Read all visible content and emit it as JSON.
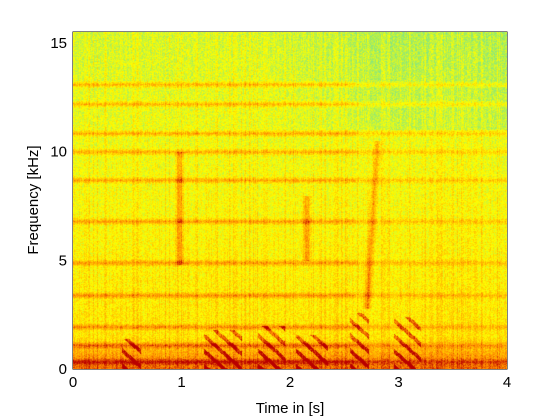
{
  "chart_data": {
    "type": "heatmap",
    "subtype": "spectrogram",
    "title": "",
    "xlabel": "Time in [s]",
    "ylabel": "Frequency [kHz]",
    "xlim": [
      0,
      4
    ],
    "ylim": [
      0,
      15.5
    ],
    "xticks": [
      0,
      1,
      2,
      3,
      4
    ],
    "xtick_labels": [
      "0",
      "1",
      "2",
      "3",
      "4"
    ],
    "yticks": [
      0,
      5,
      10,
      15
    ],
    "ytick_labels": [
      "0",
      "5",
      "10",
      "15"
    ],
    "colormap": "autumn",
    "colors": {
      "low": "#66e0a0",
      "mid": "#ffff00",
      "high": "#ff8c00",
      "peak": "#cc0000",
      "axes": "#000000",
      "background": "#ffffff"
    },
    "harmonic_bands_khz": [
      0.35,
      1.1,
      1.95,
      3.4,
      4.9,
      6.8,
      8.7,
      10.0,
      10.85,
      12.2,
      13.1
    ],
    "vertical_streaks": [
      {
        "t": 0.98,
        "f_low": 4.8,
        "f_high": 10.0
      },
      {
        "t": 2.15,
        "f_low": 5.0,
        "f_high": 8.0
      },
      {
        "t": 2.8,
        "f_low": 2.8,
        "f_high": 10.5
      }
    ],
    "chirp_events": [
      {
        "t_start": 0.45,
        "t_end": 0.62,
        "f_low": 0.1,
        "f_high": 1.4
      },
      {
        "t_start": 1.2,
        "t_end": 1.55,
        "f_low": 0.1,
        "f_high": 1.8
      },
      {
        "t_start": 1.7,
        "t_end": 1.95,
        "f_low": 0.1,
        "f_high": 2.0
      },
      {
        "t_start": 2.05,
        "t_end": 2.35,
        "f_low": 0.1,
        "f_high": 1.6
      },
      {
        "t_start": 2.55,
        "t_end": 2.72,
        "f_low": 0.1,
        "f_high": 2.6
      },
      {
        "t_start": 2.95,
        "t_end": 3.2,
        "f_low": 0.1,
        "f_high": 2.4
      }
    ]
  }
}
